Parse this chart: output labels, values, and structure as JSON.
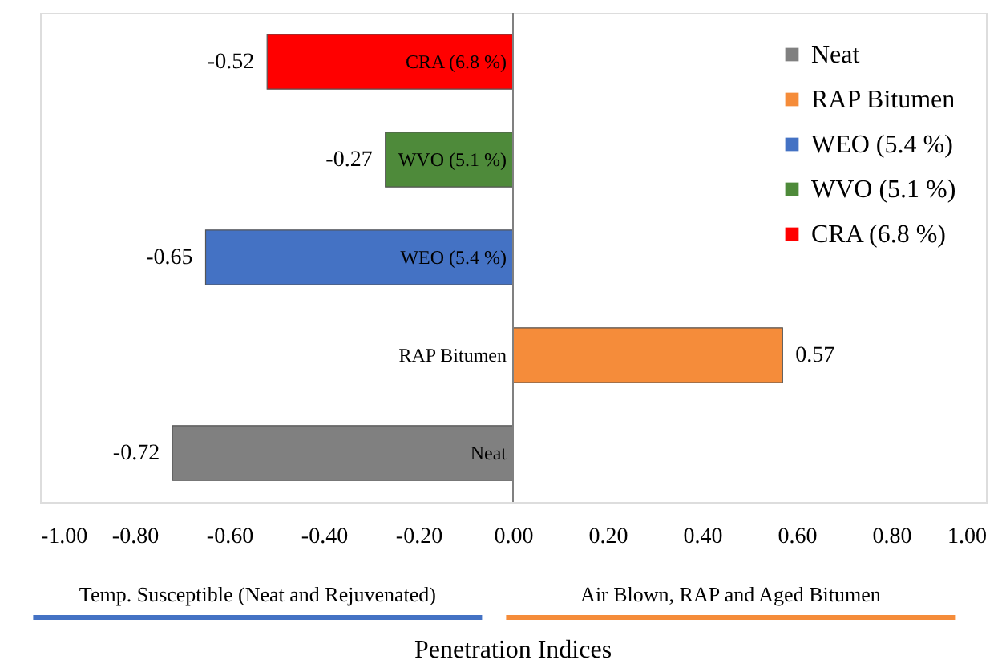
{
  "chart_data": {
    "type": "bar",
    "orientation": "horizontal",
    "xlabel": "Penetration Indices",
    "categories": [
      "CRA (6.8 %)",
      "WVO (5.1 %)",
      "WEO (5.4 %)",
      "RAP Bitumen",
      "Neat"
    ],
    "series": [
      {
        "name": "Neat",
        "color": "#808080",
        "values": [
          null,
          null,
          null,
          null,
          -0.72
        ]
      },
      {
        "name": "RAP Bitumen",
        "color": "#f58c3a",
        "values": [
          null,
          null,
          null,
          0.57,
          null
        ]
      },
      {
        "name": "WEO (5.4 %)",
        "color": "#4472c4",
        "values": [
          null,
          null,
          -0.65,
          null,
          null
        ]
      },
      {
        "name": "WVO (5.1 %)",
        "color": "#4e8a3a",
        "values": [
          null,
          -0.27,
          null,
          null,
          null
        ]
      },
      {
        "name": "CRA (6.8 %)",
        "color": "#ff0000",
        "values": [
          -0.52,
          null,
          null,
          null,
          null
        ]
      }
    ],
    "xlim": [
      -1,
      1
    ],
    "xticks": [
      {
        "value": -1,
        "label": "-1.00"
      },
      {
        "value": -0.8,
        "label": "-0.80"
      },
      {
        "value": -0.6,
        "label": "-0.60"
      },
      {
        "value": -0.4,
        "label": "-0.40"
      },
      {
        "value": -0.2,
        "label": "-0.20"
      },
      {
        "value": 0,
        "label": "0.00"
      },
      {
        "value": 0.2,
        "label": "0.20"
      },
      {
        "value": 0.4,
        "label": "0.40"
      },
      {
        "value": 0.6,
        "label": "0.60"
      },
      {
        "value": 0.8,
        "label": "0.80"
      },
      {
        "value": 1,
        "label": "1.00"
      }
    ],
    "data_labels": true,
    "grid": false,
    "legend": "top right",
    "tick_labels": "x",
    "annotations": [
      "Temp. Susceptible (Neat and Rejuvenated)",
      "Air Blown, RAP and Aged Bitumen"
    ]
  }
}
